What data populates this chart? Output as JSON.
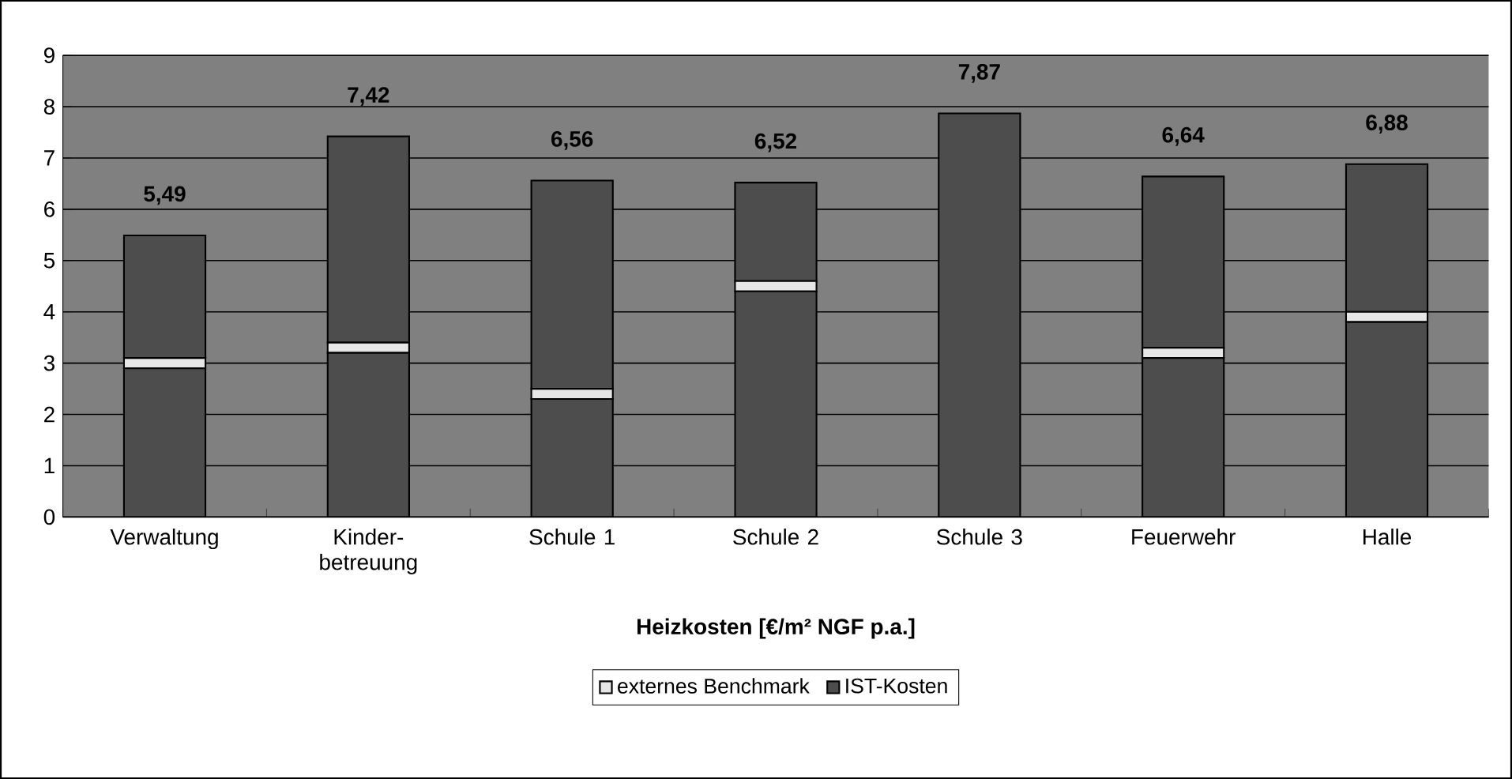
{
  "chart_data": {
    "type": "bar",
    "stacked": true,
    "xlabel": "Heizkosten [€/m² NGF p.a.]",
    "categories": [
      "Verwaltung",
      "Kinder-betreuung",
      "Schule 1",
      "Schule 2",
      "Schule 3",
      "Feuerwehr",
      "Halle"
    ],
    "series": [
      {
        "color": "#4d4d4d",
        "values": [
          2.9,
          3.2,
          2.3,
          4.4,
          7.87,
          3.1,
          3.8
        ]
      },
      {
        "name": "externes Benchmark",
        "color": "#e6e6e6",
        "values": [
          0.2,
          0.2,
          0.2,
          0.2,
          null,
          0.2,
          0.2
        ]
      },
      {
        "name": "IST-Kosten",
        "color": "#4d4d4d",
        "values": [
          2.39,
          4.02,
          4.06,
          1.92,
          null,
          3.34,
          2.88
        ]
      }
    ],
    "totals": [
      "5,49",
      "7,42",
      "6,56",
      "6,52",
      "7,87",
      "6,64",
      "6,88"
    ],
    "ylim": [
      0,
      9
    ],
    "yticks": [
      0,
      1,
      2,
      3,
      4,
      5,
      6,
      7,
      8,
      9
    ],
    "grid": "y",
    "legend": "bottom"
  }
}
